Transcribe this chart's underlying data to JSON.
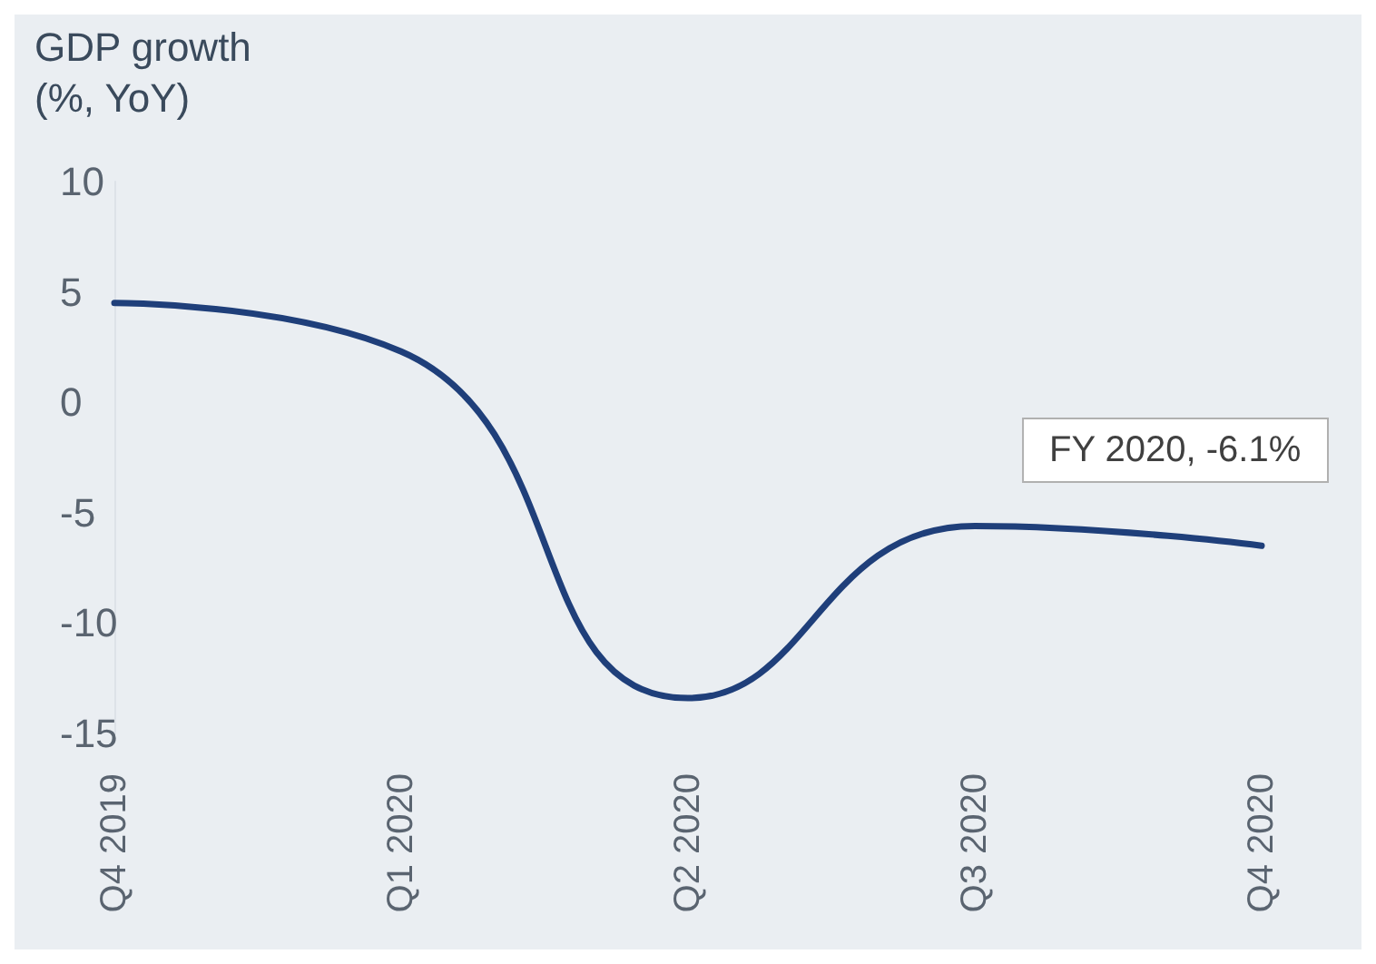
{
  "chart_data": {
    "type": "line",
    "title": "GDP growth",
    "subtitle": "(%, YoY)",
    "categories": [
      "Q4 2019",
      "Q1 2020",
      "Q2 2020",
      "Q3 2020",
      "Q4 2020"
    ],
    "series": [
      {
        "color": "#1f3f7a",
        "values": [
          4.5,
          2.3,
          -13.4,
          -5.6,
          -6.5
        ]
      }
    ],
    "ylim": [
      -15,
      10
    ],
    "yticks": [
      -15,
      -10,
      -5,
      0,
      5,
      10
    ],
    "annotations": [
      "FY 2020, -6.1%"
    ],
    "grid": false,
    "marker": "none",
    "line_style": "solid"
  }
}
